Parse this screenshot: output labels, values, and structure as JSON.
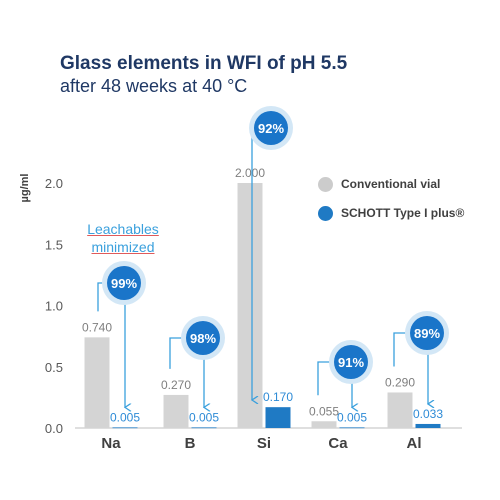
{
  "title": "Glass elements in WFI of pH 5.5",
  "subtitle": "after 48 weeks at 40 °C",
  "note": [
    "Leachables",
    "minimized"
  ],
  "colors": {
    "conventional": "#d4d4d4",
    "schott": "#1f7ac4",
    "badge": "#1a75c9",
    "badge_halo": "#d3e7f6",
    "connector": "#3aa0dd",
    "title": "#1f3864",
    "label_conventional": "#7f7f7f",
    "label_schott": "#2e8bd6"
  },
  "chart_data": {
    "type": "bar",
    "title": "Glass elements in WFI of pH 5.5",
    "subtitle": "after 48 weeks at 40 °C",
    "xlabel": "",
    "ylabel": "µg/ml",
    "ylim": [
      0,
      2.0
    ],
    "yticks": [
      "0.0",
      "0.5",
      "1.0",
      "1.5",
      "2.0"
    ],
    "categories": [
      "Na",
      "B",
      "Si",
      "Ca",
      "Al"
    ],
    "series": [
      {
        "name": "Conventional vial",
        "values": [
          0.74,
          0.27,
          2.0,
          0.055,
          0.29
        ],
        "labels": [
          "0.740",
          "0.270",
          "2.000",
          "0.055",
          "0.290"
        ]
      },
      {
        "name": "SCHOTT Type I plus®",
        "values": [
          0.005,
          0.005,
          0.17,
          0.005,
          0.033
        ],
        "labels": [
          "0.005",
          "0.005",
          "0.170",
          "0.005",
          "0.033"
        ]
      }
    ],
    "reductions": [
      "99%",
      "98%",
      "92%",
      "91%",
      "89%"
    ],
    "legend_position": "top-right",
    "grid": false
  }
}
